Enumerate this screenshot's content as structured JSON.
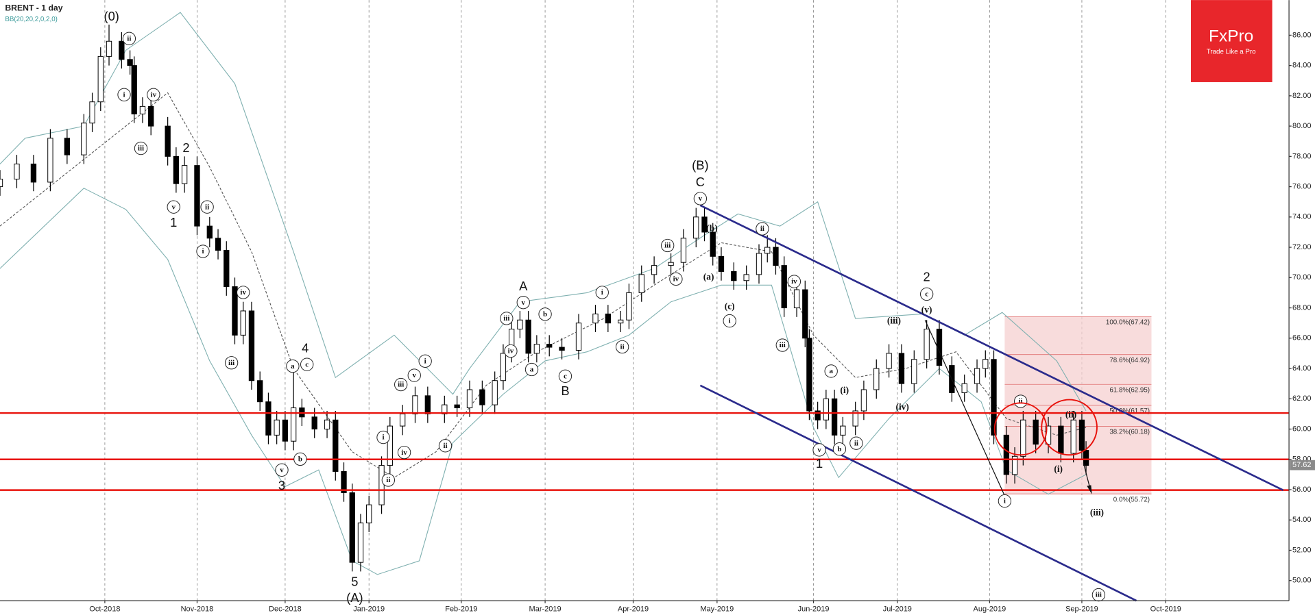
{
  "chart_data": {
    "type": "candlestick",
    "title": "BRENT - 1 day",
    "indicator": "BB(20,20,2,0,2,0)",
    "x": [
      0,
      4,
      8,
      12,
      16,
      20,
      22,
      24,
      26,
      29,
      31,
      32,
      34,
      36,
      40,
      42,
      44,
      47,
      50,
      52,
      54,
      56,
      58,
      60,
      62,
      64,
      66,
      68,
      70,
      72,
      75,
      78,
      80,
      82,
      84,
      86,
      88,
      91,
      93,
      96,
      99,
      102,
      106,
      109,
      112,
      115,
      118,
      120,
      122,
      124,
      126,
      128,
      131,
      134,
      138,
      142,
      145,
      148,
      150,
      153,
      156,
      160,
      163,
      166,
      168,
      170,
      172,
      175,
      178,
      181,
      183,
      185,
      187,
      190,
      192,
      193,
      195,
      197,
      199,
      201,
      204,
      206,
      209,
      212,
      215,
      218,
      221,
      224,
      227,
      230,
      233,
      235,
      237,
      240,
      242,
      244,
      247,
      250,
      253,
      256,
      258,
      259
    ],
    "ohlc": [
      [
        76.0,
        77.1,
        75.4,
        76.5
      ],
      [
        76.5,
        78.1,
        75.9,
        77.5
      ],
      [
        77.5,
        78.1,
        75.7,
        76.3
      ],
      [
        76.3,
        79.8,
        75.7,
        79.2
      ],
      [
        79.2,
        79.8,
        77.5,
        78.1
      ],
      [
        78.1,
        80.8,
        77.5,
        80.2
      ],
      [
        80.2,
        82.2,
        79.6,
        81.6
      ],
      [
        81.6,
        85.2,
        81.0,
        84.6
      ],
      [
        84.6,
        86.7,
        84.0,
        85.6
      ],
      [
        85.6,
        86.2,
        83.8,
        84.4
      ],
      [
        84.4,
        85.0,
        83.4,
        84.0
      ],
      [
        84.0,
        84.6,
        80.2,
        80.8
      ],
      [
        80.8,
        81.9,
        80.2,
        81.3
      ],
      [
        81.3,
        81.9,
        79.4,
        80.0
      ],
      [
        80.0,
        80.6,
        77.4,
        78.0
      ],
      [
        78.0,
        78.6,
        75.6,
        76.2
      ],
      [
        76.2,
        78.0,
        75.6,
        77.4
      ],
      [
        77.4,
        78.0,
        72.8,
        73.4
      ],
      [
        73.4,
        74.0,
        72.0,
        72.6
      ],
      [
        72.6,
        73.2,
        71.2,
        71.8
      ],
      [
        71.8,
        72.4,
        68.8,
        69.4
      ],
      [
        69.4,
        70.0,
        65.6,
        66.2
      ],
      [
        66.2,
        68.4,
        65.6,
        67.8
      ],
      [
        67.8,
        68.4,
        62.6,
        63.2
      ],
      [
        63.2,
        63.8,
        61.2,
        61.8
      ],
      [
        61.8,
        62.4,
        59.0,
        59.6
      ],
      [
        59.6,
        61.2,
        59.0,
        60.6
      ],
      [
        60.6,
        61.2,
        58.6,
        59.2
      ],
      [
        59.2,
        63.8,
        58.6,
        61.4
      ],
      [
        61.4,
        62.0,
        60.2,
        60.8
      ],
      [
        60.8,
        61.4,
        59.4,
        60.0
      ],
      [
        60.0,
        61.2,
        59.4,
        60.6
      ],
      [
        60.6,
        61.2,
        56.6,
        57.2
      ],
      [
        57.2,
        57.8,
        55.2,
        55.8
      ],
      [
        55.8,
        56.4,
        50.6,
        51.2
      ],
      [
        51.2,
        54.4,
        50.6,
        53.8
      ],
      [
        53.8,
        55.6,
        53.2,
        55.0
      ],
      [
        55.0,
        58.2,
        54.4,
        57.6
      ],
      [
        57.6,
        60.8,
        57.0,
        60.2
      ],
      [
        60.2,
        61.6,
        59.6,
        61.0
      ],
      [
        61.0,
        62.8,
        60.4,
        62.2
      ],
      [
        62.2,
        62.8,
        60.4,
        61.0
      ],
      [
        61.0,
        62.2,
        60.4,
        61.6
      ],
      [
        61.6,
        62.2,
        60.8,
        61.4
      ],
      [
        61.4,
        63.2,
        60.8,
        62.6
      ],
      [
        62.6,
        63.2,
        61.0,
        61.6
      ],
      [
        61.6,
        63.8,
        61.0,
        63.2
      ],
      [
        63.2,
        65.6,
        62.6,
        65.0
      ],
      [
        65.0,
        67.2,
        64.4,
        66.6
      ],
      [
        66.6,
        67.8,
        66.0,
        67.2
      ],
      [
        67.2,
        67.8,
        64.4,
        65.0
      ],
      [
        65.0,
        66.2,
        64.4,
        65.6
      ],
      [
        65.6,
        66.2,
        64.8,
        65.4
      ],
      [
        65.4,
        66.0,
        64.6,
        65.2
      ],
      [
        65.2,
        67.6,
        64.6,
        67.0
      ],
      [
        67.0,
        68.2,
        66.4,
        67.6
      ],
      [
        67.6,
        68.2,
        66.4,
        67.0
      ],
      [
        67.0,
        67.8,
        66.4,
        67.2
      ],
      [
        67.2,
        69.6,
        66.6,
        69.0
      ],
      [
        69.0,
        70.8,
        68.4,
        70.2
      ],
      [
        70.2,
        71.4,
        69.6,
        70.8
      ],
      [
        70.8,
        71.6,
        70.2,
        71.0
      ],
      [
        71.0,
        73.2,
        70.4,
        72.6
      ],
      [
        72.6,
        74.6,
        72.0,
        74.0
      ],
      [
        74.0,
        74.6,
        72.4,
        73.0
      ],
      [
        73.0,
        73.6,
        70.8,
        71.4
      ],
      [
        71.4,
        72.0,
        69.8,
        70.4
      ],
      [
        70.4,
        71.0,
        69.2,
        69.8
      ],
      [
        69.8,
        70.8,
        69.2,
        70.2
      ],
      [
        70.2,
        72.2,
        69.6,
        71.6
      ],
      [
        71.6,
        72.8,
        71.0,
        72.0
      ],
      [
        72.0,
        72.6,
        70.2,
        70.8
      ],
      [
        70.8,
        71.4,
        67.4,
        68.0
      ],
      [
        68.0,
        69.8,
        67.4,
        69.2
      ],
      [
        69.2,
        69.8,
        65.4,
        66.0
      ],
      [
        66.0,
        66.6,
        60.6,
        61.2
      ],
      [
        61.2,
        61.8,
        60.0,
        60.6
      ],
      [
        60.6,
        62.6,
        60.0,
        62.0
      ],
      [
        62.0,
        62.6,
        59.0,
        59.6
      ],
      [
        59.6,
        60.8,
        59.0,
        60.2
      ],
      [
        60.2,
        61.8,
        59.6,
        61.2
      ],
      [
        61.2,
        63.2,
        60.6,
        62.6
      ],
      [
        62.6,
        64.6,
        62.0,
        64.0
      ],
      [
        64.0,
        65.6,
        63.4,
        65.0
      ],
      [
        65.0,
        65.6,
        62.4,
        63.0
      ],
      [
        63.0,
        65.2,
        62.4,
        64.6
      ],
      [
        64.6,
        67.2,
        64.0,
        66.6
      ],
      [
        66.6,
        67.2,
        63.6,
        64.2
      ],
      [
        64.2,
        64.8,
        61.8,
        62.4
      ],
      [
        62.4,
        63.6,
        61.8,
        63.0
      ],
      [
        63.0,
        64.6,
        62.4,
        64.0
      ],
      [
        64.0,
        65.2,
        63.4,
        64.6
      ],
      [
        64.6,
        65.2,
        59.0,
        59.6
      ],
      [
        59.6,
        60.2,
        56.4,
        57.0
      ],
      [
        57.0,
        58.8,
        56.4,
        58.2
      ],
      [
        58.2,
        61.2,
        57.6,
        60.6
      ],
      [
        60.6,
        61.2,
        58.4,
        59.0
      ],
      [
        59.0,
        60.8,
        58.4,
        60.2
      ],
      [
        60.2,
        60.8,
        57.8,
        58.4
      ],
      [
        58.4,
        61.2,
        57.8,
        60.6
      ],
      [
        60.6,
        61.2,
        58.0,
        58.6
      ],
      [
        58.6,
        59.2,
        57.0,
        57.6
      ]
    ],
    "up_color": "#ffffff",
    "down_color": "#000000",
    "xlim": [
      0,
      307.4
    ],
    "ylim": [
      48.67,
      88.32
    ],
    "xticks": [
      {
        "value": 25,
        "label": "Oct-2018"
      },
      {
        "value": 47,
        "label": "Nov-2018"
      },
      {
        "value": 68,
        "label": "Dec-2018"
      },
      {
        "value": 88,
        "label": "Jan-2019"
      },
      {
        "value": 110,
        "label": "Feb-2019"
      },
      {
        "value": 130,
        "label": "Mar-2019"
      },
      {
        "value": 151,
        "label": "Apr-2019"
      },
      {
        "value": 171,
        "label": "May-2019"
      },
      {
        "value": 194,
        "label": "Jun-2019"
      },
      {
        "value": 214,
        "label": "Jul-2019"
      },
      {
        "value": 236,
        "label": "Aug-2019"
      },
      {
        "value": 258,
        "label": "Sep-2019"
      },
      {
        "value": 278,
        "label": "Oct-2019"
      }
    ],
    "yticks": [
      {
        "value": 50,
        "label": "50.00"
      },
      {
        "value": 52,
        "label": "52.00"
      },
      {
        "value": 54,
        "label": "54.00"
      },
      {
        "value": 56,
        "label": "56.00"
      },
      {
        "value": 58,
        "label": "58.00"
      },
      {
        "value": 60,
        "label": "60.00"
      },
      {
        "value": 62,
        "label": "62.00"
      },
      {
        "value": 64,
        "label": "64.00"
      },
      {
        "value": 66,
        "label": "66.00"
      },
      {
        "value": 68,
        "label": "68.00"
      },
      {
        "value": 70,
        "label": "70.00"
      },
      {
        "value": 72,
        "label": "72.00"
      },
      {
        "value": 74,
        "label": "74.00"
      },
      {
        "value": 76,
        "label": "76.00"
      },
      {
        "value": 78,
        "label": "78.00"
      },
      {
        "value": 80,
        "label": "80.00"
      },
      {
        "value": 82,
        "label": "82.00"
      },
      {
        "value": 84,
        "label": "84.00"
      },
      {
        "value": 86,
        "label": "86.00"
      }
    ],
    "grid": true,
    "last_price": {
      "value": 57.62,
      "label": "57.62"
    },
    "bands": [
      {
        "color": "#7fb0b0",
        "dash": false,
        "x": [
          0,
          6,
          20,
          30,
          43,
          56,
          70,
          80,
          94,
          108,
          112,
          124,
          140,
          156,
          168,
          176,
          186,
          195,
          204,
          220,
          230,
          239,
          252,
          259
        ],
        "values": [
          77.5,
          79.2,
          80.0,
          85.0,
          87.5,
          82.8,
          71.7,
          63.4,
          66.2,
          62.3,
          64.0,
          68.4,
          69.0,
          70.6,
          72.8,
          74.2,
          73.4,
          75.0,
          67.3,
          67.6,
          66.2,
          67.7,
          64.5,
          61.2
        ]
      },
      {
        "color": "#555555",
        "dash": true,
        "x": [
          0,
          20,
          40,
          50,
          60,
          70,
          84,
          94,
          104,
          116,
          128,
          144,
          156,
          172,
          184,
          194,
          204,
          216,
          228,
          240,
          252,
          259
        ],
        "values": [
          73.4,
          77.8,
          82.2,
          77.3,
          71.7,
          64.0,
          58.5,
          56.8,
          58.5,
          62.9,
          65.1,
          67.3,
          69.5,
          72.3,
          71.7,
          66.2,
          63.4,
          64.0,
          65.1,
          60.7,
          59.6,
          60.1
        ]
      },
      {
        "color": "#7fb0b0",
        "dash": false,
        "x": [
          0,
          20,
          30,
          40,
          50,
          60,
          68,
          76,
          84,
          90,
          100,
          108,
          120,
          130,
          140,
          150,
          160,
          172,
          184,
          194,
          200,
          212,
          224,
          234,
          240,
          250,
          259
        ],
        "values": [
          70.6,
          75.9,
          74.5,
          71.2,
          64.5,
          59.6,
          56.2,
          57.3,
          51.3,
          50.4,
          51.3,
          59.1,
          62.3,
          64.5,
          65.1,
          66.2,
          68.4,
          69.5,
          69.5,
          60.1,
          56.8,
          60.7,
          64.0,
          61.8,
          57.3,
          55.7,
          57.0
        ]
      }
    ],
    "hlines": {
      "color": "#e8120c",
      "values": [
        61.06,
        58.0,
        55.97
      ]
    },
    "trendlines": [
      {
        "color": "#2b2b8c",
        "x": [
          167,
          306
        ],
        "y": [
          74.77,
          55.97
        ]
      },
      {
        "color": "#2b2b8c",
        "x": [
          167,
          271
        ],
        "y": [
          62.88,
          48.67
        ]
      },
      {
        "color": "#111111",
        "x": [
          220.6,
          239.6
        ],
        "y": [
          67.2,
          55.6
        ]
      }
    ],
    "fib": {
      "color": "#f5d0d0",
      "line_color": "#e07070",
      "x": [
        239.6,
        274.6
      ],
      "levels": [
        {
          "value": 67.42,
          "label": "100.0%(67.42)"
        },
        {
          "value": 64.92,
          "label": "78.6%(64.92)"
        },
        {
          "value": 62.95,
          "label": "61.8%(62.95)"
        },
        {
          "value": 61.57,
          "label": "50.0%(61.57)"
        },
        {
          "value": 60.18,
          "label": "38.2%(60.18)"
        },
        {
          "value": 55.72,
          "label": "0.0%(55.72)"
        }
      ]
    },
    "annotations": [
      "(0)",
      "ii",
      "i",
      "iv",
      "iii",
      "2",
      "v",
      "1",
      "ii",
      "i",
      "iv",
      "iii",
      "4",
      "a",
      "c",
      "b",
      "v",
      "3",
      "5",
      "(A)",
      "i",
      "ii",
      "iii",
      "iv",
      "v",
      "i",
      "ii",
      "A",
      "v",
      "iii",
      "iv",
      "a",
      "b",
      "c",
      "B",
      "i",
      "ii",
      "iii",
      "iv",
      "(B)",
      "C",
      "v",
      "(b)",
      "(a)",
      "(c)",
      "i",
      "ii",
      "iv",
      "iii",
      "v",
      "1",
      "a",
      "b",
      "(i)",
      "ii",
      "(iii)",
      "(iv)",
      "2",
      "c",
      "(v)",
      "ii",
      "i",
      "(ii)",
      "(i)",
      "(iii)",
      "iii"
    ]
  },
  "logo": {
    "brand": "FxPro",
    "tagline": "Trade Like a Pro"
  }
}
